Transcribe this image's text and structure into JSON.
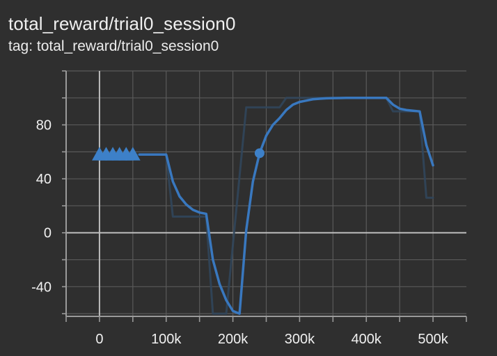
{
  "header": {
    "title": "total_reward/trial0_session0",
    "subtitle": "tag: total_reward/trial0_session0"
  },
  "colors": {
    "background": "#2f2f2f",
    "grid": "#5a5a5a",
    "axis": "#9b9b9b",
    "zero_line": "#bdbdbd",
    "smoothed": "#3978bf",
    "raw": "#31465b",
    "marker": "#3d80c8"
  },
  "chart_data": {
    "type": "line",
    "title": "total_reward/trial0_session0",
    "xlabel": "",
    "ylabel": "",
    "xlim": [
      -50000,
      550000
    ],
    "ylim": [
      -62,
      120
    ],
    "x_tick_values": [
      0,
      100000,
      200000,
      300000,
      400000,
      500000
    ],
    "x_tick_labels": [
      "0",
      "100k",
      "200k",
      "300k",
      "400k",
      "500k"
    ],
    "y_tick_values": [
      -40,
      0,
      40,
      80
    ],
    "y_tick_labels": [
      "-40",
      "0",
      "40",
      "80"
    ],
    "grid": true,
    "legend": "none",
    "series": [
      {
        "style": "raw",
        "x": [
          0,
          100000,
          110000,
          160000,
          170000,
          190000,
          220000,
          270000,
          280000,
          430000,
          440000,
          480000,
          490000,
          500000
        ],
        "y": [
          58,
          58,
          12,
          12,
          -60,
          -60,
          93,
          93,
          100,
          100,
          90,
          90,
          26,
          26
        ]
      },
      {
        "style": "smoothed",
        "x": [
          60000,
          100000,
          110000,
          120000,
          130000,
          140000,
          150000,
          160000,
          170000,
          180000,
          190000,
          200000,
          210000,
          220000,
          230000,
          240000,
          250000,
          260000,
          270000,
          280000,
          290000,
          300000,
          310000,
          320000,
          330000,
          340000,
          350000,
          360000,
          370000,
          380000,
          390000,
          400000,
          410000,
          420000,
          430000,
          440000,
          450000,
          460000,
          470000,
          480000,
          490000,
          500000
        ],
        "y": [
          58,
          58,
          38,
          27,
          21,
          17,
          15,
          14,
          -20,
          -38,
          -50,
          -58,
          -60,
          2,
          38,
          59,
          72,
          80,
          85,
          91,
          95,
          97,
          98,
          99,
          99.4,
          99.7,
          99.8,
          99.9,
          100,
          100,
          100,
          100,
          100,
          100,
          100,
          95,
          92,
          91,
          90.5,
          90,
          65,
          50
        ]
      }
    ],
    "triangle_markers": {
      "x": [
        0,
        10000,
        20000,
        30000,
        40000,
        50000
      ],
      "y": [
        58,
        58,
        58,
        58,
        58,
        58
      ]
    },
    "point_marker": {
      "x": 240000,
      "y": 59
    }
  }
}
